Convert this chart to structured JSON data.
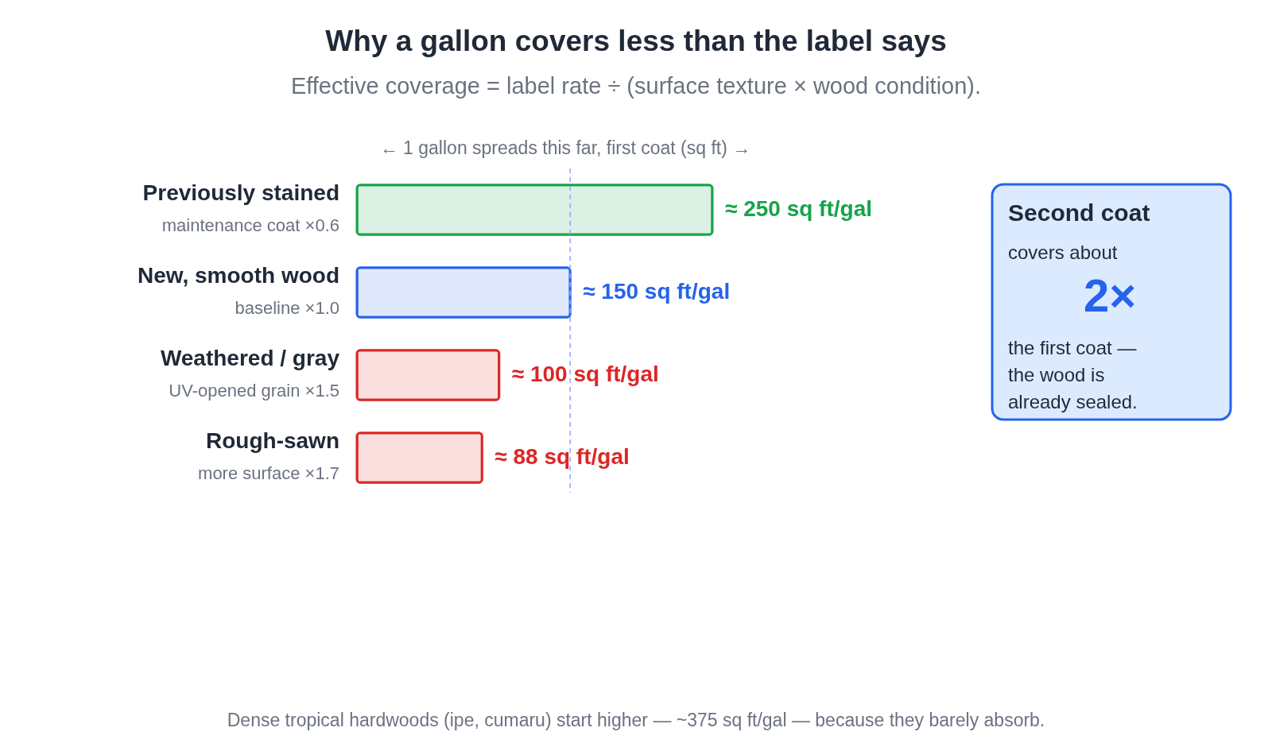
{
  "chart_data": {
    "type": "bar",
    "orientation": "horizontal",
    "title": "Why a gallon covers less than the label says",
    "subtitle": "Effective coverage = label rate ÷ (surface texture × wood condition).",
    "xlabel": "← 1 gallon spreads this far, first coat (sq ft) →",
    "categories": [
      "Previously stained",
      "New, smooth wood",
      "Weathered / gray",
      "Rough-sawn"
    ],
    "values": [
      250,
      150,
      100,
      88
    ],
    "colors": [
      "#16a34a",
      "#2563eb",
      "#dc2626",
      "#dc2626"
    ],
    "value_labels": [
      "≈ 250 sq ft/gal",
      "≈ 150 sq ft/gal",
      "≈ 100 sq ft/gal",
      "≈ 88 sq ft/gal"
    ],
    "ref_lines": [
      {
        "axis": "x",
        "value": 150,
        "color": "#8fa8f0",
        "line_style": "dashed"
      }
    ],
    "annotations": [
      "maintenance coat ×0.6",
      "baseline ×1.0",
      "UV-opened grain ×1.5",
      "more surface ×1.7",
      "Second coat",
      "covers about",
      "2×",
      "the first coat — the wood is already sealed.",
      "Dense tropical hardwoods (ipe, cumaru) start higher — ~375 sq ft/gal — because they barely absorb."
    ],
    "data_labels": false
  }
}
